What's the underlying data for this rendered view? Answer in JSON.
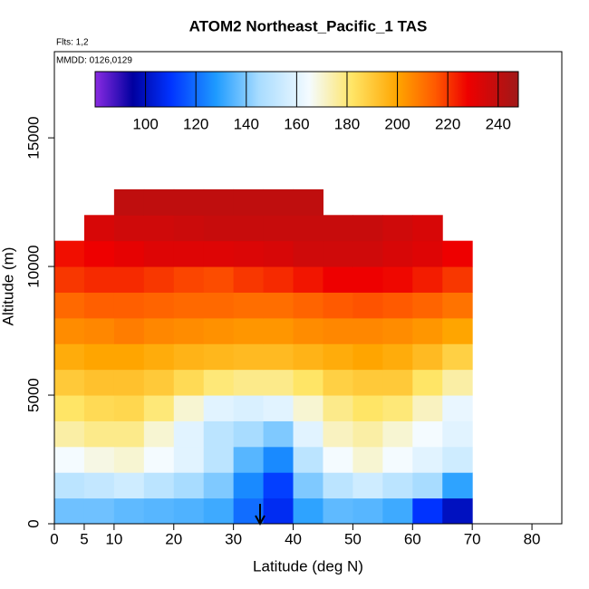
{
  "chart_data": {
    "type": "heatmap",
    "title": "ATOM2 Northeast_Pacific_1 TAS",
    "subtitle": "Flts: 1,2",
    "annotation": "MMDD: 0126,0129",
    "x_label": "Latitude (deg N)",
    "y_label": "Altitude (m)",
    "xlim": [
      0,
      85
    ],
    "ylim": [
      0,
      18350
    ],
    "xticks": [
      0,
      5,
      10,
      20,
      30,
      40,
      50,
      60,
      70,
      80
    ],
    "yticks": [
      0,
      5000,
      10000,
      15000
    ],
    "x_edges": [
      0,
      5,
      10,
      15,
      20,
      25,
      30,
      35,
      40,
      45,
      50,
      55,
      60,
      65,
      70
    ],
    "y_edges": [
      0,
      1000,
      2000,
      3000,
      4000,
      5000,
      6000,
      7000,
      8000,
      9000,
      10000,
      11000,
      12000,
      13000
    ],
    "z": [
      [
        138,
        138,
        136,
        135,
        134,
        132,
        120,
        108,
        130,
        136,
        135,
        132,
        110,
        100
      ],
      [
        150,
        152,
        155,
        150,
        145,
        140,
        125,
        112,
        140,
        150,
        155,
        150,
        145,
        130
      ],
      [
        165,
        168,
        170,
        165,
        160,
        150,
        135,
        125,
        150,
        165,
        170,
        165,
        160,
        155
      ],
      [
        175,
        178,
        178,
        170,
        160,
        150,
        145,
        140,
        160,
        172,
        175,
        170,
        165,
        160
      ],
      [
        182,
        185,
        186,
        180,
        170,
        160,
        158,
        160,
        170,
        178,
        182,
        180,
        172,
        162
      ],
      [
        190,
        192,
        192,
        190,
        185,
        180,
        178,
        178,
        182,
        188,
        190,
        190,
        182,
        175
      ],
      [
        198,
        200,
        200,
        198,
        196,
        195,
        194,
        194,
        196,
        198,
        200,
        198,
        194,
        188
      ],
      [
        205,
        206,
        208,
        206,
        205,
        204,
        203,
        203,
        205,
        206,
        206,
        205,
        203,
        200
      ],
      [
        212,
        214,
        214,
        213,
        212,
        212,
        211,
        211,
        213,
        215,
        216,
        215,
        213,
        210
      ],
      [
        220,
        222,
        222,
        220,
        218,
        217,
        220,
        222,
        225,
        228,
        228,
        227,
        224,
        220
      ],
      [
        226,
        228,
        230,
        232,
        232,
        232,
        233,
        234,
        236,
        236,
        236,
        234,
        232,
        228
      ],
      [
        null,
        234,
        236,
        236,
        237,
        238,
        238,
        238,
        238,
        238,
        238,
        236,
        234,
        null
      ],
      [
        null,
        null,
        240,
        240,
        240,
        240,
        240,
        240,
        240,
        null,
        null,
        null,
        null,
        null
      ]
    ],
    "colorbar_lim": [
      80,
      248
    ],
    "colorbar_ticks": [
      100,
      120,
      140,
      160,
      180,
      200,
      220,
      240
    ],
    "colorscale": [
      {
        "value": 80,
        "color": "#8a2be2"
      },
      {
        "value": 95,
        "color": "#0000a0"
      },
      {
        "value": 110,
        "color": "#0033ff"
      },
      {
        "value": 128,
        "color": "#1e9bff"
      },
      {
        "value": 145,
        "color": "#a8dcff"
      },
      {
        "value": 165,
        "color": "#f4fbff"
      },
      {
        "value": 182,
        "color": "#ffe566"
      },
      {
        "value": 200,
        "color": "#ffa500"
      },
      {
        "value": 215,
        "color": "#ff5a00"
      },
      {
        "value": 228,
        "color": "#ee0000"
      },
      {
        "value": 248,
        "color": "#a01818"
      }
    ]
  }
}
